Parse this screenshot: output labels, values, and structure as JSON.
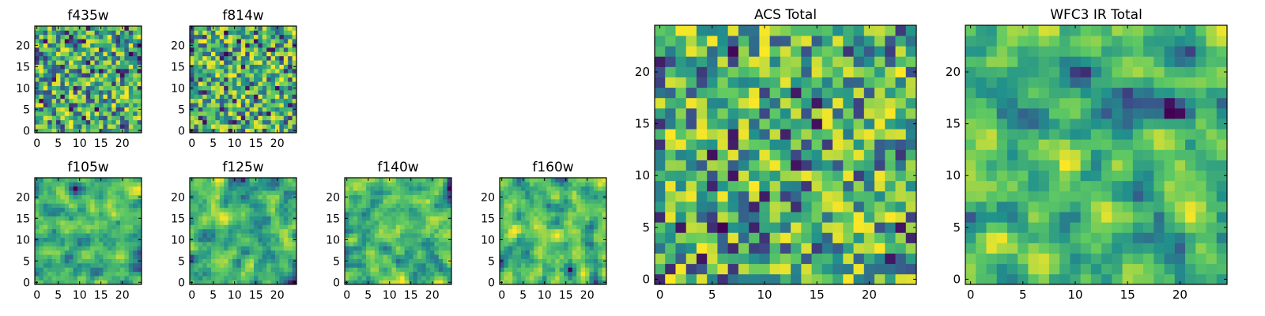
{
  "figure": {
    "colormap": "viridis",
    "colormap_stops": [
      "#440154",
      "#3b528b",
      "#21918c",
      "#5ec962",
      "#fde725"
    ]
  },
  "chart_data": [
    {
      "type": "heatmap",
      "title": "f435w",
      "xlim": [
        0,
        24
      ],
      "ylim": [
        0,
        24
      ],
      "xticks": [
        0,
        5,
        10,
        15,
        20
      ],
      "yticks": [
        0,
        5,
        10,
        15,
        20
      ],
      "grid": false,
      "seed": 11,
      "smooth": 0
    },
    {
      "type": "heatmap",
      "title": "f814w",
      "xlim": [
        0,
        24
      ],
      "ylim": [
        0,
        24
      ],
      "xticks": [
        0,
        5,
        10,
        15,
        20
      ],
      "yticks": [
        0,
        5,
        10,
        15,
        20
      ],
      "grid": false,
      "seed": 23,
      "smooth": 0
    },
    {
      "type": "heatmap",
      "title": "f105w",
      "xlim": [
        0,
        24
      ],
      "ylim": [
        0,
        24
      ],
      "xticks": [
        0,
        5,
        10,
        15,
        20
      ],
      "yticks": [
        0,
        5,
        10,
        15,
        20
      ],
      "grid": false,
      "seed": 37,
      "smooth": 1
    },
    {
      "type": "heatmap",
      "title": "f125w",
      "xlim": [
        0,
        24
      ],
      "ylim": [
        0,
        24
      ],
      "xticks": [
        0,
        5,
        10,
        15,
        20
      ],
      "yticks": [
        0,
        5,
        10,
        15,
        20
      ],
      "grid": false,
      "seed": 41,
      "smooth": 1
    },
    {
      "type": "heatmap",
      "title": "f140w",
      "xlim": [
        0,
        24
      ],
      "ylim": [
        0,
        24
      ],
      "xticks": [
        0,
        5,
        10,
        15,
        20
      ],
      "yticks": [
        0,
        5,
        10,
        15,
        20
      ],
      "grid": false,
      "seed": 53,
      "smooth": 1
    },
    {
      "type": "heatmap",
      "title": "f160w",
      "xlim": [
        0,
        24
      ],
      "ylim": [
        0,
        24
      ],
      "xticks": [
        0,
        5,
        10,
        15,
        20
      ],
      "yticks": [
        0,
        5,
        10,
        15,
        20
      ],
      "grid": false,
      "seed": 67,
      "smooth": 1
    },
    {
      "type": "heatmap",
      "title": "ACS Total",
      "xlim": [
        0,
        24
      ],
      "ylim": [
        0,
        24
      ],
      "xticks": [
        0,
        5,
        10,
        15,
        20
      ],
      "yticks": [
        0,
        5,
        10,
        15,
        20
      ],
      "grid": false,
      "seed": 79,
      "smooth": 0
    },
    {
      "type": "heatmap",
      "title": "WFC3 IR Total",
      "xlim": [
        0,
        24
      ],
      "ylim": [
        0,
        24
      ],
      "xticks": [
        0,
        5,
        10,
        15,
        20
      ],
      "yticks": [
        0,
        5,
        10,
        15,
        20
      ],
      "grid": false,
      "seed": 97,
      "smooth": 1
    }
  ]
}
